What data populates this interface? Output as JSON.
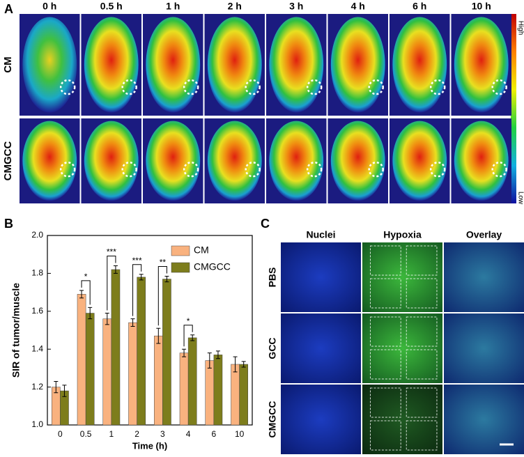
{
  "panel_labels": [
    "A",
    "B",
    "C"
  ],
  "panel_a": {
    "time_labels": [
      "0 h",
      "0.5 h",
      "1 h",
      "2 h",
      "3 h",
      "4 h",
      "6 h",
      "10 h"
    ],
    "row_labels": [
      "CM",
      "CMGCC"
    ],
    "colorbar": {
      "high": "High",
      "low": "Low"
    }
  },
  "chart_data": {
    "type": "bar",
    "x_label": "Time (h)",
    "y_label": "SIR of tumor/muscle",
    "categories": [
      "0",
      "0.5",
      "1",
      "2",
      "3",
      "4",
      "6",
      "10"
    ],
    "series": [
      {
        "name": "CM",
        "color": "#f9b27f",
        "values": [
          1.2,
          1.69,
          1.56,
          1.54,
          1.47,
          1.38,
          1.34,
          1.32
        ],
        "errors": [
          0.03,
          0.02,
          0.03,
          0.02,
          0.04,
          0.02,
          0.04,
          0.04
        ]
      },
      {
        "name": "CMGCC",
        "color": "#7d7d1c",
        "values": [
          1.18,
          1.59,
          1.82,
          1.78,
          1.77,
          1.46,
          1.37,
          1.32
        ],
        "errors": [
          0.03,
          0.03,
          0.02,
          0.015,
          0.015,
          0.015,
          0.02,
          0.015
        ]
      }
    ],
    "annotations": [
      {
        "category": "0.5",
        "text": "*"
      },
      {
        "category": "1",
        "text": "***"
      },
      {
        "category": "2",
        "text": "***"
      },
      {
        "category": "3",
        "text": "**"
      },
      {
        "category": "4",
        "text": "*"
      }
    ],
    "ylim": [
      1.0,
      2.0
    ],
    "yticks": [
      {
        "value": 1.0,
        "label": "1.0"
      },
      1.2,
      1.4,
      1.6,
      1.8,
      {
        "value": 2.0,
        "label": "2.0"
      }
    ],
    "legend": "upper right"
  },
  "panel_c": {
    "columns": [
      "Nuclei",
      "Hypoxia",
      "Overlay"
    ],
    "rows": [
      "PBS",
      "GCC",
      "CMGCC"
    ]
  }
}
